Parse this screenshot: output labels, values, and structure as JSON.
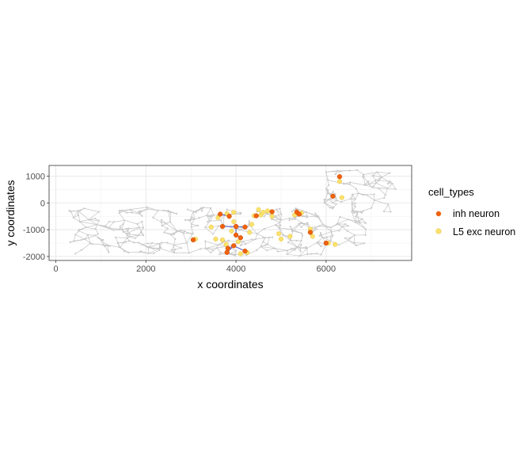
{
  "chart_data": {
    "type": "scatter",
    "title": "",
    "xlabel": "x coordinates",
    "ylabel": "y coordinates",
    "xlim": [
      -150,
      7900
    ],
    "ylim": [
      -2150,
      1400
    ],
    "x_ticks": [
      0,
      2000,
      4000,
      6000
    ],
    "y_ticks": [
      -2000,
      -1000,
      0,
      1000
    ],
    "x_tick_labels": [
      "0",
      "2000",
      "4000",
      "6000"
    ],
    "y_tick_labels": [
      "-2000",
      "-1000",
      "0",
      "1000"
    ],
    "grid": true,
    "legend": {
      "title": "cell_types",
      "position": "right"
    },
    "colors": {
      "inh neuron": "#f0620f",
      "L5 exc neuron": "#fbe26a",
      "network_edge": "#c4c4c4",
      "network_node": "#c9c9c9",
      "highlight_edge": "#4a55c8",
      "panel_border": "#333333",
      "grid_major": "#e6e6e6",
      "grid_minor": "#f2f2f2"
    },
    "series": [
      {
        "name": "inh neuron",
        "points": [
          [
            3050,
            -1380
          ],
          [
            3650,
            -420
          ],
          [
            3700,
            -880
          ],
          [
            3850,
            -500
          ],
          [
            3950,
            -1600
          ],
          [
            3800,
            -1850
          ],
          [
            4000,
            -1200
          ],
          [
            4200,
            -900
          ],
          [
            4000,
            -880
          ],
          [
            4200,
            -1800
          ],
          [
            4450,
            -480
          ],
          [
            4800,
            -330
          ],
          [
            5350,
            -340
          ],
          [
            5400,
            -420
          ],
          [
            5650,
            -1100
          ],
          [
            6000,
            -1500
          ],
          [
            6150,
            250
          ],
          [
            6300,
            980
          ],
          [
            3820,
            -1700
          ],
          [
            4100,
            -1300
          ]
        ]
      },
      {
        "name": "L5 exc neuron",
        "points": [
          [
            3100,
            -1350
          ],
          [
            3450,
            -900
          ],
          [
            3550,
            -1350
          ],
          [
            3700,
            -1380
          ],
          [
            3800,
            -400
          ],
          [
            3780,
            -1550
          ],
          [
            3950,
            -350
          ],
          [
            3950,
            -700
          ],
          [
            4050,
            -1450
          ],
          [
            4100,
            -1900
          ],
          [
            4250,
            -1850
          ],
          [
            4300,
            -1100
          ],
          [
            4350,
            -800
          ],
          [
            4400,
            -480
          ],
          [
            4500,
            -250
          ],
          [
            4550,
            -450
          ],
          [
            4600,
            -350
          ],
          [
            4700,
            -300
          ],
          [
            4800,
            -500
          ],
          [
            4950,
            -1150
          ],
          [
            5000,
            -1350
          ],
          [
            5200,
            -1250
          ],
          [
            5300,
            -450
          ],
          [
            5450,
            -380
          ],
          [
            5650,
            -980
          ],
          [
            5700,
            -1250
          ],
          [
            6050,
            -1500
          ],
          [
            6200,
            -1550
          ],
          [
            6350,
            200
          ],
          [
            6300,
            800
          ],
          [
            3600,
            -550
          ],
          [
            3900,
            -1050
          ]
        ]
      }
    ]
  }
}
